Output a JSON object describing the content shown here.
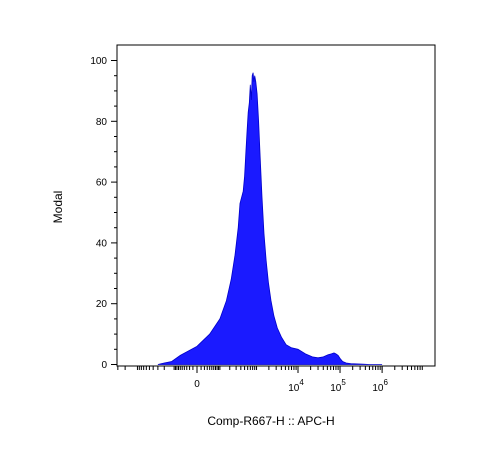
{
  "chart_data": {
    "type": "area",
    "title": "",
    "xlabel": "Comp-R667-H :: APC-H",
    "ylabel": "Modal",
    "x_scale": "biexponential",
    "ylim": [
      0,
      105
    ],
    "y_ticks": [
      0,
      20,
      40,
      60,
      80,
      100
    ],
    "x_ticks": [
      {
        "value": 0,
        "label": "0"
      },
      {
        "value": 10000,
        "base": "10",
        "exp": "4"
      },
      {
        "value": 100000,
        "base": "10",
        "exp": "5"
      },
      {
        "value": 1000000,
        "base": "10",
        "exp": "6"
      }
    ],
    "fill_color": "#1a1aff",
    "edge_color": "#0000cc",
    "series": [
      {
        "x": [
          -300,
          -200,
          -120,
          -60,
          0,
          40,
          100,
          160,
          220,
          280,
          340,
          380,
          420,
          460,
          500,
          540,
          580,
          620,
          660,
          700,
          740,
          780,
          820,
          860,
          900,
          960,
          1030,
          1120,
          1230,
          1360,
          1520,
          1720,
          1950,
          2250,
          2650,
          3200,
          4000,
          5200,
          7000,
          10000,
          15000,
          22000,
          30000,
          40000,
          52000,
          62000,
          72000,
          80000,
          90000,
          100000,
          115000,
          140000,
          180000,
          250000,
          350000,
          500000,
          1000000
        ],
        "y": [
          0,
          0.5,
          1,
          3,
          6,
          10,
          15,
          21,
          28,
          36,
          45,
          53,
          55,
          57,
          62,
          70,
          77,
          83,
          86,
          92,
          87,
          95,
          96,
          93,
          95,
          93,
          89,
          80,
          68,
          55,
          43,
          34,
          27,
          21,
          16,
          12,
          9,
          6.5,
          5.5,
          5,
          3.5,
          2.5,
          2.2,
          2.5,
          3.2,
          3.5,
          3.8,
          3.5,
          3,
          2,
          1,
          0.5,
          0.3,
          0.2,
          0.1,
          0,
          0
        ]
      }
    ],
    "grid": false,
    "legend": "none"
  }
}
